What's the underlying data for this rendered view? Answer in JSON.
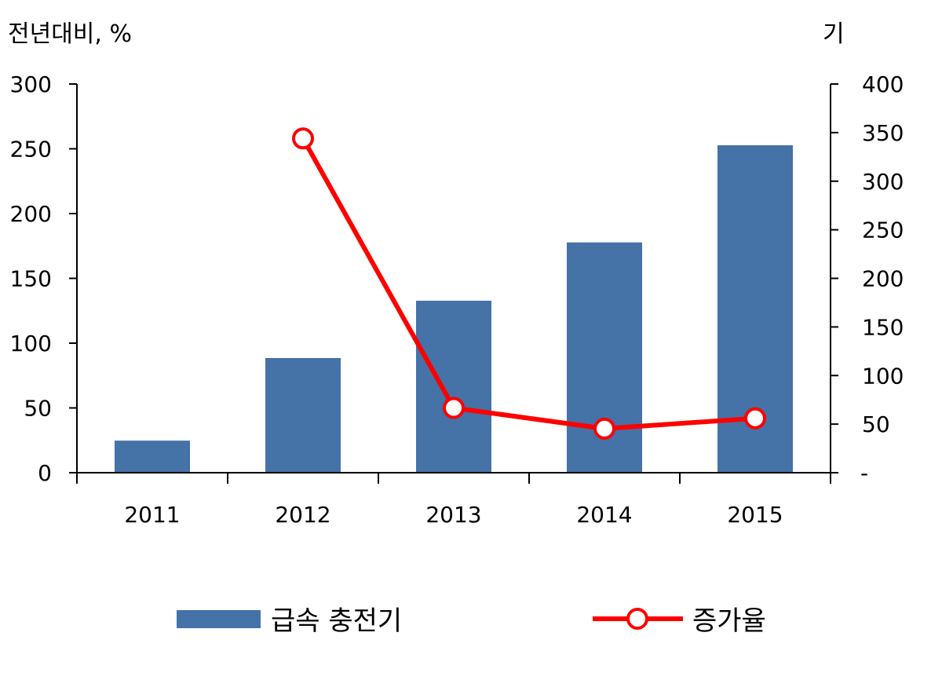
{
  "chart_data": {
    "type": "bar",
    "categories": [
      "2011",
      "2012",
      "2013",
      "2014",
      "2015"
    ],
    "left_axis": {
      "label": "전년대비, %",
      "ylim": [
        0,
        300
      ],
      "ticks": [
        "0",
        "50",
        "100",
        "150",
        "200",
        "250",
        "300"
      ]
    },
    "right_axis": {
      "label": "기",
      "ylim": [
        0,
        400
      ],
      "ticks": [
        "-",
        "50",
        "100",
        "150",
        "200",
        "250",
        "300",
        "350",
        "400"
      ]
    },
    "series": [
      {
        "name": "급속 충전기",
        "type": "bar",
        "axis": "right",
        "color": "#4572A7",
        "values": [
          33,
          118,
          177,
          237,
          337
        ]
      },
      {
        "name": "증가율",
        "type": "line",
        "axis": "left",
        "color": "#FF0000",
        "values": [
          null,
          258,
          50,
          34,
          42
        ]
      }
    ],
    "legend_position": "bottom",
    "grid": false
  }
}
